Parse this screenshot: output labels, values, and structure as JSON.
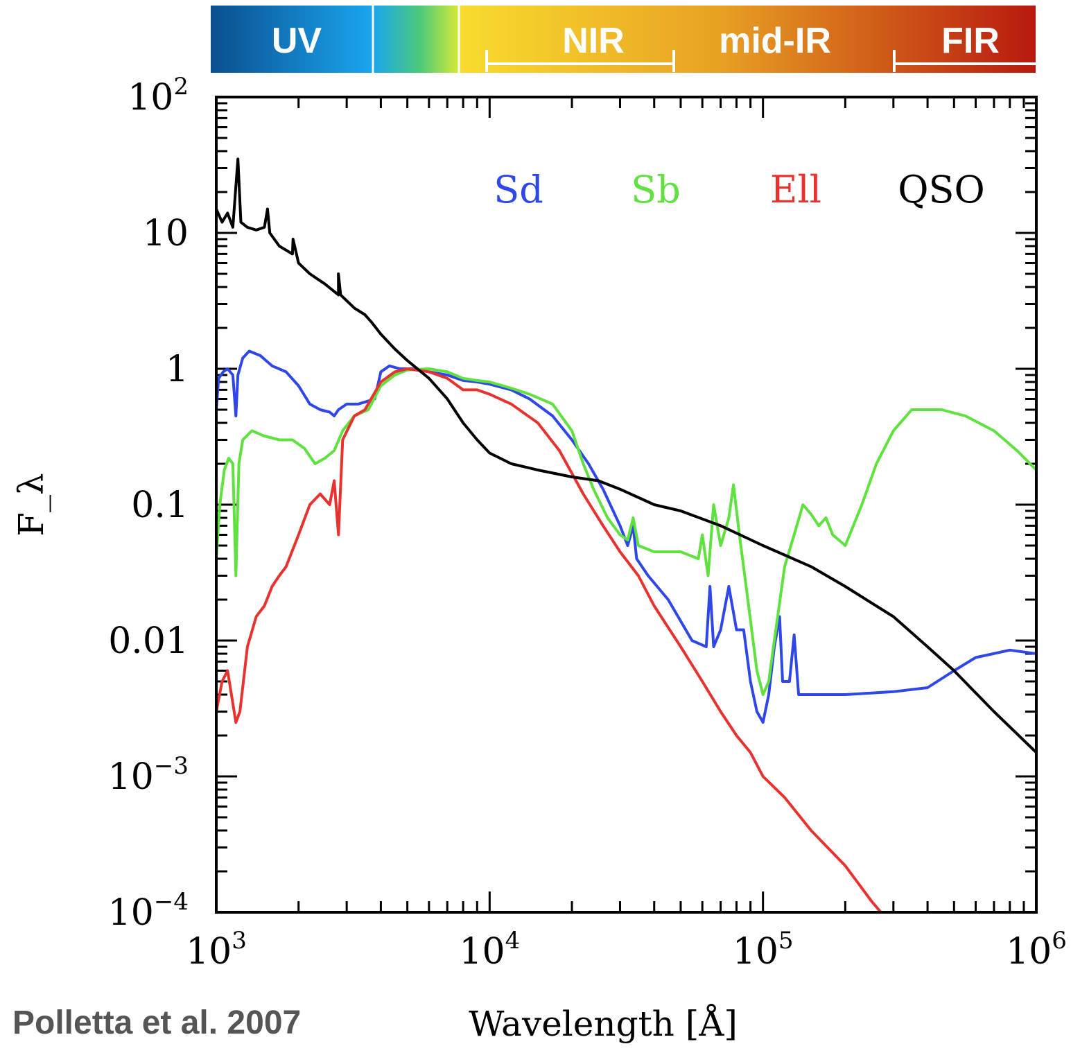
{
  "bands": [
    {
      "label": "UV",
      "from": 1000,
      "to": 3900
    },
    {
      "label": "",
      "from": 3900,
      "to": 7600
    },
    {
      "label": "NIR",
      "from": 7600,
      "to": 50000
    },
    {
      "label": "mid-IR",
      "from": 50000,
      "to": 300000
    },
    {
      "label": "FIR",
      "from": 300000,
      "to": 1000000
    }
  ],
  "bracket_ranges": [
    {
      "label": "NIR",
      "from": 10000,
      "to": 50000
    },
    {
      "label": "FIR",
      "from": 300000,
      "to": 1000000
    }
  ],
  "credit": "Polletta et al. 2007",
  "chart_data": {
    "type": "line",
    "title": "",
    "xlabel": "Wavelength [Å]",
    "ylabel": "F_λ",
    "x_scale": "log",
    "y_scale": "log",
    "xlim": [
      1000,
      1000000
    ],
    "ylim": [
      0.0001,
      100
    ],
    "x_ticks": [
      {
        "value": 1000,
        "base": "10",
        "exp": "3"
      },
      {
        "value": 10000,
        "base": "10",
        "exp": "4"
      },
      {
        "value": 100000,
        "base": "10",
        "exp": "5"
      },
      {
        "value": 1000000,
        "base": "10",
        "exp": "6"
      }
    ],
    "y_ticks": [
      {
        "value": 100,
        "base": "10",
        "exp": "2"
      },
      {
        "value": 10,
        "base": "10",
        "exp": ""
      },
      {
        "value": 1,
        "base": "1",
        "exp": ""
      },
      {
        "value": 0.1,
        "base": "0.1",
        "exp": ""
      },
      {
        "value": 0.01,
        "base": "0.01",
        "exp": ""
      },
      {
        "value": 0.001,
        "base": "10",
        "exp": "−3"
      },
      {
        "value": 0.0001,
        "base": "10",
        "exp": "−4"
      }
    ],
    "grid": false,
    "legend_position": "top-right",
    "series": [
      {
        "name": "Sd",
        "color": "#2f47e8",
        "points": [
          [
            1000,
            0.5
          ],
          [
            1020,
            0.85
          ],
          [
            1060,
            0.95
          ],
          [
            1100,
            1.0
          ],
          [
            1150,
            0.9
          ],
          [
            1180,
            0.45
          ],
          [
            1200,
            0.9
          ],
          [
            1250,
            1.2
          ],
          [
            1320,
            1.35
          ],
          [
            1450,
            1.25
          ],
          [
            1600,
            1.05
          ],
          [
            1800,
            0.95
          ],
          [
            2000,
            0.75
          ],
          [
            2200,
            0.55
          ],
          [
            2400,
            0.5
          ],
          [
            2600,
            0.48
          ],
          [
            2700,
            0.45
          ],
          [
            2800,
            0.5
          ],
          [
            3000,
            0.55
          ],
          [
            3300,
            0.55
          ],
          [
            3600,
            0.58
          ],
          [
            3800,
            0.6
          ],
          [
            4000,
            0.95
          ],
          [
            4300,
            1.05
          ],
          [
            4700,
            1.0
          ],
          [
            5200,
            1.0
          ],
          [
            6000,
            0.95
          ],
          [
            7000,
            0.9
          ],
          [
            8000,
            0.82
          ],
          [
            9000,
            0.8
          ],
          [
            10000,
            0.77
          ],
          [
            12000,
            0.7
          ],
          [
            14000,
            0.6
          ],
          [
            17000,
            0.45
          ],
          [
            20000,
            0.3
          ],
          [
            23000,
            0.2
          ],
          [
            26000,
            0.13
          ],
          [
            30000,
            0.07
          ],
          [
            32000,
            0.05
          ],
          [
            33500,
            0.07
          ],
          [
            34500,
            0.04
          ],
          [
            38000,
            0.03
          ],
          [
            45000,
            0.02
          ],
          [
            55000,
            0.01
          ],
          [
            62000,
            0.009
          ],
          [
            64000,
            0.025
          ],
          [
            66000,
            0.009
          ],
          [
            70000,
            0.012
          ],
          [
            75000,
            0.025
          ],
          [
            80000,
            0.012
          ],
          [
            85000,
            0.012
          ],
          [
            90000,
            0.005
          ],
          [
            95000,
            0.003
          ],
          [
            100000,
            0.0025
          ],
          [
            105000,
            0.004
          ],
          [
            110000,
            0.009
          ],
          [
            115000,
            0.015
          ],
          [
            118000,
            0.005
          ],
          [
            125000,
            0.005
          ],
          [
            130000,
            0.011
          ],
          [
            135000,
            0.004
          ],
          [
            150000,
            0.004
          ],
          [
            200000,
            0.004
          ],
          [
            300000,
            0.0042
          ],
          [
            400000,
            0.0045
          ],
          [
            500000,
            0.006
          ],
          [
            600000,
            0.0075
          ],
          [
            800000,
            0.0085
          ],
          [
            1000000,
            0.008
          ]
        ]
      },
      {
        "name": "Sb",
        "color": "#5fe23f",
        "points": [
          [
            1000,
            0.04
          ],
          [
            1030,
            0.1
          ],
          [
            1070,
            0.18
          ],
          [
            1110,
            0.22
          ],
          [
            1150,
            0.2
          ],
          [
            1180,
            0.03
          ],
          [
            1210,
            0.2
          ],
          [
            1250,
            0.3
          ],
          [
            1350,
            0.35
          ],
          [
            1500,
            0.32
          ],
          [
            1700,
            0.3
          ],
          [
            1900,
            0.3
          ],
          [
            2100,
            0.26
          ],
          [
            2300,
            0.2
          ],
          [
            2500,
            0.22
          ],
          [
            2700,
            0.25
          ],
          [
            2900,
            0.35
          ],
          [
            3200,
            0.45
          ],
          [
            3600,
            0.5
          ],
          [
            4000,
            0.75
          ],
          [
            4500,
            0.9
          ],
          [
            5000,
            0.98
          ],
          [
            6000,
            1.0
          ],
          [
            7000,
            0.95
          ],
          [
            8000,
            0.85
          ],
          [
            9000,
            0.82
          ],
          [
            10000,
            0.8
          ],
          [
            12000,
            0.72
          ],
          [
            14000,
            0.65
          ],
          [
            17000,
            0.55
          ],
          [
            20000,
            0.35
          ],
          [
            22000,
            0.2
          ],
          [
            24000,
            0.13
          ],
          [
            27000,
            0.08
          ],
          [
            30000,
            0.06
          ],
          [
            32000,
            0.055
          ],
          [
            33500,
            0.08
          ],
          [
            35000,
            0.05
          ],
          [
            40000,
            0.045
          ],
          [
            50000,
            0.045
          ],
          [
            58000,
            0.04
          ],
          [
            60000,
            0.06
          ],
          [
            63000,
            0.03
          ],
          [
            66000,
            0.1
          ],
          [
            70000,
            0.05
          ],
          [
            75000,
            0.08
          ],
          [
            78000,
            0.14
          ],
          [
            82000,
            0.06
          ],
          [
            88000,
            0.02
          ],
          [
            95000,
            0.006
          ],
          [
            100000,
            0.004
          ],
          [
            105000,
            0.005
          ],
          [
            110000,
            0.01
          ],
          [
            120000,
            0.035
          ],
          [
            130000,
            0.06
          ],
          [
            140000,
            0.1
          ],
          [
            150000,
            0.085
          ],
          [
            160000,
            0.07
          ],
          [
            170000,
            0.08
          ],
          [
            180000,
            0.06
          ],
          [
            200000,
            0.05
          ],
          [
            230000,
            0.1
          ],
          [
            260000,
            0.2
          ],
          [
            300000,
            0.35
          ],
          [
            350000,
            0.5
          ],
          [
            450000,
            0.5
          ],
          [
            550000,
            0.45
          ],
          [
            700000,
            0.35
          ],
          [
            850000,
            0.25
          ],
          [
            1000000,
            0.18
          ]
        ]
      },
      {
        "name": "Ell",
        "color": "#e8322f",
        "points": [
          [
            1000,
            0.003
          ],
          [
            1050,
            0.005
          ],
          [
            1100,
            0.006
          ],
          [
            1180,
            0.0025
          ],
          [
            1220,
            0.003
          ],
          [
            1300,
            0.009
          ],
          [
            1400,
            0.015
          ],
          [
            1500,
            0.018
          ],
          [
            1600,
            0.025
          ],
          [
            1700,
            0.03
          ],
          [
            1800,
            0.035
          ],
          [
            2000,
            0.06
          ],
          [
            2200,
            0.1
          ],
          [
            2400,
            0.12
          ],
          [
            2600,
            0.1
          ],
          [
            2700,
            0.15
          ],
          [
            2800,
            0.06
          ],
          [
            2900,
            0.3
          ],
          [
            3200,
            0.45
          ],
          [
            3500,
            0.5
          ],
          [
            4000,
            0.8
          ],
          [
            4500,
            0.95
          ],
          [
            5000,
            1.0
          ],
          [
            6000,
            0.95
          ],
          [
            7000,
            0.85
          ],
          [
            8000,
            0.7
          ],
          [
            9000,
            0.7
          ],
          [
            10000,
            0.65
          ],
          [
            12000,
            0.55
          ],
          [
            15000,
            0.4
          ],
          [
            18000,
            0.25
          ],
          [
            22000,
            0.12
          ],
          [
            26000,
            0.07
          ],
          [
            30000,
            0.045
          ],
          [
            35000,
            0.03
          ],
          [
            40000,
            0.018
          ],
          [
            50000,
            0.009
          ],
          [
            60000,
            0.005
          ],
          [
            70000,
            0.003
          ],
          [
            80000,
            0.002
          ],
          [
            90000,
            0.0015
          ],
          [
            100000,
            0.001
          ],
          [
            120000,
            0.0007
          ],
          [
            150000,
            0.0004
          ],
          [
            200000,
            0.00022
          ],
          [
            250000,
            0.00012
          ],
          [
            270000,
            0.0001
          ]
        ]
      },
      {
        "name": "QSO",
        "color": "#000000",
        "points": [
          [
            1000,
            15
          ],
          [
            1050,
            12
          ],
          [
            1100,
            14
          ],
          [
            1150,
            11
          ],
          [
            1200,
            35
          ],
          [
            1230,
            12
          ],
          [
            1300,
            11
          ],
          [
            1400,
            10.5
          ],
          [
            1500,
            11
          ],
          [
            1540,
            15
          ],
          [
            1570,
            10
          ],
          [
            1700,
            8
          ],
          [
            1900,
            7
          ],
          [
            1909,
            9
          ],
          [
            2000,
            6
          ],
          [
            2200,
            5
          ],
          [
            2500,
            4.2
          ],
          [
            2800,
            3.5
          ],
          [
            2798,
            5
          ],
          [
            2850,
            3.5
          ],
          [
            3200,
            2.8
          ],
          [
            3500,
            2.5
          ],
          [
            3700,
            2.2
          ],
          [
            4000,
            1.8
          ],
          [
            4500,
            1.4
          ],
          [
            5000,
            1.15
          ],
          [
            6000,
            0.85
          ],
          [
            7000,
            0.6
          ],
          [
            8000,
            0.4
          ],
          [
            9000,
            0.3
          ],
          [
            10000,
            0.24
          ],
          [
            12000,
            0.2
          ],
          [
            15000,
            0.18
          ],
          [
            20000,
            0.16
          ],
          [
            25000,
            0.15
          ],
          [
            30000,
            0.13
          ],
          [
            40000,
            0.1
          ],
          [
            50000,
            0.09
          ],
          [
            70000,
            0.07
          ],
          [
            100000,
            0.05
          ],
          [
            150000,
            0.035
          ],
          [
            200000,
            0.025
          ],
          [
            300000,
            0.015
          ],
          [
            400000,
            0.009
          ],
          [
            500000,
            0.006
          ],
          [
            700000,
            0.003
          ],
          [
            1000000,
            0.0015
          ]
        ]
      }
    ]
  }
}
